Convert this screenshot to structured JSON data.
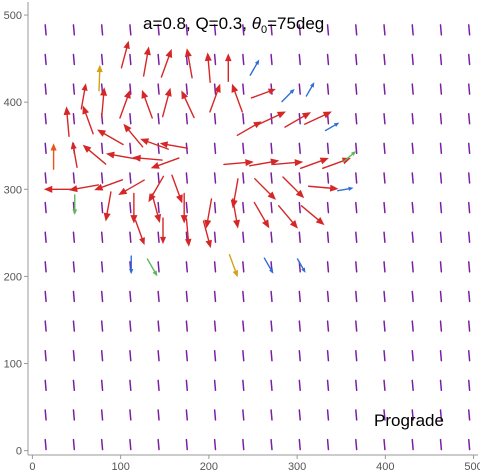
{
  "chart_data": {
    "type": "vector_field",
    "title": "a=0.8, Q=0.3, θ0=75deg",
    "title_parts": {
      "prefix": "a=0.8, Q=0.3, ",
      "theta": "θ",
      "theta_sub": "0",
      "suffix": "=75deg"
    },
    "annotation": "Prograde",
    "xlim": [
      -5,
      505
    ],
    "ylim": [
      -5,
      515
    ],
    "x_ticks": [
      0,
      100,
      200,
      300,
      400,
      500
    ],
    "y_ticks": [
      0,
      100,
      200,
      300,
      400,
      500
    ],
    "x_tick_labels": [
      "0",
      "100",
      "200",
      "300",
      "400",
      "500"
    ],
    "y_tick_labels": [
      "0",
      "100",
      "200",
      "300",
      "400",
      "500"
    ],
    "frame": true,
    "grid": false,
    "colors": {
      "far_field": "#7b1fa2",
      "near_field": "#d62728",
      "orange": "#e8541c",
      "gold": "#d4a017",
      "blue": "#2f6fd6",
      "green": "#5cb85c",
      "axis": "#999999"
    },
    "background_field": {
      "x_start": 15,
      "x_end": 495,
      "x_step": 32,
      "y_start": 7,
      "y_end": 505,
      "y_step": 34,
      "direction_deg": 95,
      "color": "far_field"
    },
    "vectors": [
      {
        "x": 76,
        "y": 428,
        "angle": 88,
        "len": 26,
        "color": "gold"
      },
      {
        "x": 105,
        "y": 455,
        "angle": 75,
        "len": 28,
        "color": "near_field"
      },
      {
        "x": 129,
        "y": 447,
        "angle": 80,
        "len": 30,
        "color": "near_field"
      },
      {
        "x": 152,
        "y": 445,
        "angle": 70,
        "len": 30,
        "color": "near_field"
      },
      {
        "x": 178,
        "y": 445,
        "angle": 100,
        "len": 30,
        "color": "near_field"
      },
      {
        "x": 200,
        "y": 440,
        "angle": 95,
        "len": 30,
        "color": "near_field"
      },
      {
        "x": 222,
        "y": 440,
        "angle": 90,
        "len": 28,
        "color": "near_field"
      },
      {
        "x": 252,
        "y": 440,
        "angle": 60,
        "len": 18,
        "color": "blue"
      },
      {
        "x": 58,
        "y": 407,
        "angle": 80,
        "len": 26,
        "color": "near_field"
      },
      {
        "x": 80,
        "y": 400,
        "angle": 85,
        "len": 30,
        "color": "near_field"
      },
      {
        "x": 105,
        "y": 398,
        "angle": 70,
        "len": 30,
        "color": "near_field"
      },
      {
        "x": 130,
        "y": 398,
        "angle": 110,
        "len": 30,
        "color": "near_field"
      },
      {
        "x": 152,
        "y": 400,
        "angle": 75,
        "len": 30,
        "color": "near_field"
      },
      {
        "x": 176,
        "y": 398,
        "angle": 115,
        "len": 30,
        "color": "near_field"
      },
      {
        "x": 207,
        "y": 405,
        "angle": 70,
        "len": 30,
        "color": "near_field"
      },
      {
        "x": 232,
        "y": 405,
        "angle": 110,
        "len": 30,
        "color": "near_field"
      },
      {
        "x": 262,
        "y": 410,
        "angle": 20,
        "len": 26,
        "color": "near_field"
      },
      {
        "x": 290,
        "y": 408,
        "angle": 45,
        "len": 18,
        "color": "blue"
      },
      {
        "x": 315,
        "y": 415,
        "angle": 60,
        "len": 16,
        "color": "blue"
      },
      {
        "x": 40,
        "y": 378,
        "angle": 95,
        "len": 30,
        "color": "near_field"
      },
      {
        "x": 63,
        "y": 380,
        "angle": 110,
        "len": 30,
        "color": "near_field"
      },
      {
        "x": 88,
        "y": 360,
        "angle": 150,
        "len": 30,
        "color": "near_field"
      },
      {
        "x": 114,
        "y": 362,
        "angle": 130,
        "len": 30,
        "color": "near_field"
      },
      {
        "x": 138,
        "y": 352,
        "angle": 160,
        "len": 30,
        "color": "near_field"
      },
      {
        "x": 160,
        "y": 350,
        "angle": 170,
        "len": 28,
        "color": "near_field"
      },
      {
        "x": 246,
        "y": 370,
        "angle": 30,
        "len": 28,
        "color": "near_field"
      },
      {
        "x": 272,
        "y": 382,
        "angle": 25,
        "len": 30,
        "color": "near_field"
      },
      {
        "x": 301,
        "y": 380,
        "angle": 30,
        "len": 30,
        "color": "near_field"
      },
      {
        "x": 324,
        "y": 382,
        "angle": 25,
        "len": 30,
        "color": "near_field"
      },
      {
        "x": 340,
        "y": 372,
        "angle": 30,
        "len": 16,
        "color": "blue"
      },
      {
        "x": 24,
        "y": 338,
        "angle": 90,
        "len": 26,
        "color": "orange"
      },
      {
        "x": 48,
        "y": 340,
        "angle": 100,
        "len": 26,
        "color": "near_field"
      },
      {
        "x": 70,
        "y": 340,
        "angle": 140,
        "len": 30,
        "color": "near_field"
      },
      {
        "x": 100,
        "y": 338,
        "angle": 170,
        "len": 30,
        "color": "near_field"
      },
      {
        "x": 130,
        "y": 335,
        "angle": 175,
        "len": 30,
        "color": "near_field"
      },
      {
        "x": 150,
        "y": 330,
        "angle": 200,
        "len": 30,
        "color": "near_field"
      },
      {
        "x": 234,
        "y": 330,
        "angle": 5,
        "len": 30,
        "color": "near_field"
      },
      {
        "x": 263,
        "y": 330,
        "angle": 10,
        "len": 30,
        "color": "near_field"
      },
      {
        "x": 290,
        "y": 330,
        "angle": 5,
        "len": 30,
        "color": "near_field"
      },
      {
        "x": 320,
        "y": 330,
        "angle": 20,
        "len": 30,
        "color": "near_field"
      },
      {
        "x": 345,
        "y": 330,
        "angle": 20,
        "len": 30,
        "color": "near_field"
      },
      {
        "x": 360,
        "y": 338,
        "angle": 40,
        "len": 16,
        "color": "green"
      },
      {
        "x": 30,
        "y": 300,
        "angle": 180,
        "len": 30,
        "color": "near_field"
      },
      {
        "x": 58,
        "y": 302,
        "angle": 190,
        "len": 30,
        "color": "near_field"
      },
      {
        "x": 86,
        "y": 305,
        "angle": 200,
        "len": 30,
        "color": "near_field"
      },
      {
        "x": 112,
        "y": 302,
        "angle": 210,
        "len": 30,
        "color": "near_field"
      },
      {
        "x": 140,
        "y": 300,
        "angle": 240,
        "len": 30,
        "color": "near_field"
      },
      {
        "x": 164,
        "y": 300,
        "angle": 290,
        "len": 30,
        "color": "near_field"
      },
      {
        "x": 230,
        "y": 295,
        "angle": 260,
        "len": 30,
        "color": "near_field"
      },
      {
        "x": 264,
        "y": 300,
        "angle": 315,
        "len": 30,
        "color": "near_field"
      },
      {
        "x": 296,
        "y": 302,
        "angle": 315,
        "len": 30,
        "color": "near_field"
      },
      {
        "x": 330,
        "y": 302,
        "angle": 355,
        "len": 30,
        "color": "near_field"
      },
      {
        "x": 355,
        "y": 300,
        "angle": 10,
        "len": 16,
        "color": "blue"
      },
      {
        "x": 48,
        "y": 282,
        "angle": 270,
        "len": 20,
        "color": "green"
      },
      {
        "x": 86,
        "y": 280,
        "angle": 260,
        "len": 30,
        "color": "near_field"
      },
      {
        "x": 115,
        "y": 278,
        "angle": 270,
        "len": 30,
        "color": "near_field"
      },
      {
        "x": 140,
        "y": 278,
        "angle": 285,
        "len": 30,
        "color": "near_field"
      },
      {
        "x": 172,
        "y": 278,
        "angle": 270,
        "len": 30,
        "color": "near_field"
      },
      {
        "x": 200,
        "y": 272,
        "angle": 260,
        "len": 30,
        "color": "near_field"
      },
      {
        "x": 230,
        "y": 272,
        "angle": 280,
        "len": 30,
        "color": "near_field"
      },
      {
        "x": 260,
        "y": 270,
        "angle": 300,
        "len": 30,
        "color": "near_field"
      },
      {
        "x": 290,
        "y": 268,
        "angle": 310,
        "len": 30,
        "color": "near_field"
      },
      {
        "x": 318,
        "y": 270,
        "angle": 320,
        "len": 30,
        "color": "near_field"
      },
      {
        "x": 122,
        "y": 250,
        "angle": 290,
        "len": 26,
        "color": "near_field"
      },
      {
        "x": 148,
        "y": 252,
        "angle": 270,
        "len": 26,
        "color": "near_field"
      },
      {
        "x": 176,
        "y": 250,
        "angle": 275,
        "len": 28,
        "color": "near_field"
      },
      {
        "x": 198,
        "y": 248,
        "angle": 285,
        "len": 28,
        "color": "near_field"
      },
      {
        "x": 112,
        "y": 213,
        "angle": 270,
        "len": 18,
        "color": "blue"
      },
      {
        "x": 136,
        "y": 210,
        "angle": 300,
        "len": 20,
        "color": "green"
      },
      {
        "x": 228,
        "y": 212,
        "angle": 290,
        "len": 24,
        "color": "gold"
      },
      {
        "x": 268,
        "y": 212,
        "angle": 300,
        "len": 18,
        "color": "blue"
      },
      {
        "x": 305,
        "y": 212,
        "angle": 300,
        "len": 16,
        "color": "blue"
      }
    ]
  }
}
